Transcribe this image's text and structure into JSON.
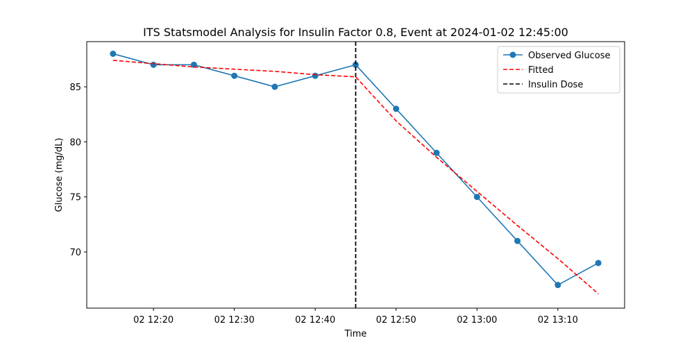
{
  "chart_data": {
    "type": "line",
    "title": "ITS Statsmodel Analysis for Insulin Factor 0.8, Event at 2024-01-02 12:45:00",
    "xlabel": "Time",
    "ylabel": "Glucose (mg/dL)",
    "x": [
      "2024-01-02 12:15",
      "2024-01-02 12:20",
      "2024-01-02 12:25",
      "2024-01-02 12:30",
      "2024-01-02 12:35",
      "2024-01-02 12:40",
      "2024-01-02 12:45",
      "2024-01-02 12:50",
      "2024-01-02 12:55",
      "2024-01-02 13:00",
      "2024-01-02 13:05",
      "2024-01-02 13:10",
      "2024-01-02 13:15"
    ],
    "xlim": [
      "2024-01-02 12:11:45",
      "2024-01-02 13:18:15"
    ],
    "ylim": [
      64.9,
      89.1
    ],
    "xticks": [
      {
        "value": "2024-01-02 12:20",
        "label": "02 12:20"
      },
      {
        "value": "2024-01-02 12:30",
        "label": "02 12:30"
      },
      {
        "value": "2024-01-02 12:40",
        "label": "02 12:40"
      },
      {
        "value": "2024-01-02 12:50",
        "label": "02 12:50"
      },
      {
        "value": "2024-01-02 13:00",
        "label": "02 13:00"
      },
      {
        "value": "2024-01-02 13:10",
        "label": "02 13:10"
      }
    ],
    "yticks": [
      70,
      75,
      80,
      85
    ],
    "series": [
      {
        "name": "Observed Glucose",
        "style": "solid-with-markers",
        "color": "#1f77b4",
        "values": [
          88,
          87,
          87,
          86,
          85,
          86,
          87,
          83,
          79,
          75,
          71,
          67,
          69
        ]
      },
      {
        "name": "Fitted",
        "style": "dashed",
        "color": "#ff0000",
        "values": [
          87.4,
          87.1,
          86.8,
          86.6,
          86.4,
          86.1,
          85.9,
          81.9,
          78.6,
          75.5,
          72.4,
          69.4,
          66.2
        ]
      }
    ],
    "vline": {
      "name": "Insulin Dose",
      "x": "2024-01-02 12:45",
      "color": "#000000",
      "style": "dashed"
    },
    "legend_position": "top-right",
    "grid": false
  }
}
